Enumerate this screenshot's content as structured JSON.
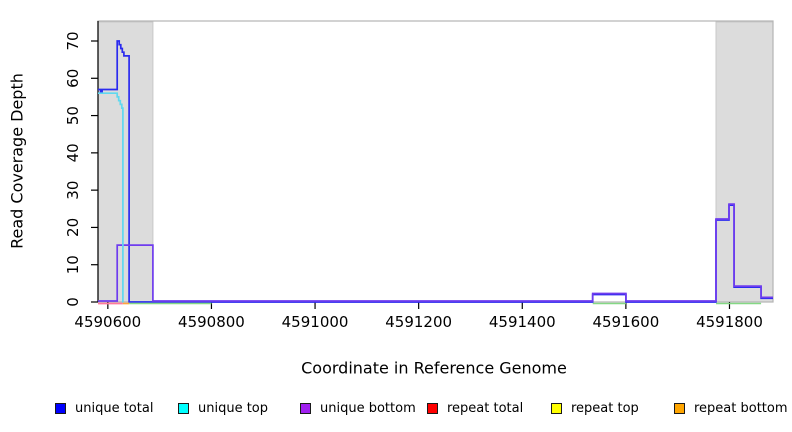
{
  "chart_data": {
    "type": "line",
    "subtype": "step-coverage",
    "title": "",
    "xlabel": "Coordinate in Reference Genome",
    "ylabel": "Read Coverage Depth",
    "xlim": [
      4590581,
      4591884
    ],
    "ylim": [
      0,
      70
    ],
    "grid": "off",
    "legend_position": "bottom",
    "x_ticks": [
      "4590600",
      "4590800",
      "4591000",
      "4591200",
      "4591400",
      "4591600",
      "4591800"
    ],
    "x_tick_values": [
      4590600,
      4590800,
      4591000,
      4591200,
      4591400,
      4591600,
      4591800
    ],
    "y_ticks": [
      "0",
      "10",
      "20",
      "30",
      "40",
      "50",
      "60",
      "70"
    ],
    "y_tick_values": [
      0,
      10,
      20,
      30,
      40,
      50,
      60,
      70
    ],
    "shaded_regions": [
      {
        "x1": 4590581,
        "x2": 4590687
      },
      {
        "x1": 4591774,
        "x2": 4591884
      }
    ],
    "shade_fill": "#dcdcdc",
    "shade_stroke": "#c8c8c8",
    "frame_color": "#b4b4b4",
    "axis_color": "#000000",
    "series": [
      {
        "name": "unique total",
        "color": "#2b2bef",
        "dy": 0,
        "points": [
          [
            4590581,
            57
          ],
          [
            4590586,
            56
          ],
          [
            4590589,
            57
          ],
          [
            4590618,
            70
          ],
          [
            4590622,
            69
          ],
          [
            4590625,
            68
          ],
          [
            4590628,
            67
          ],
          [
            4590631,
            66
          ],
          [
            4590641,
            0
          ],
          [
            4591536,
            2
          ],
          [
            4591600,
            0
          ],
          [
            4591774,
            22
          ],
          [
            4591799,
            26
          ],
          [
            4591809,
            4
          ],
          [
            4591861,
            1
          ],
          [
            4591884,
            1
          ]
        ]
      },
      {
        "name": "unique bottom",
        "color": "#6f3cee",
        "dy": -1,
        "points": [
          [
            4590581,
            0
          ],
          [
            4590618,
            15
          ],
          [
            4590687,
            0
          ],
          [
            4591536,
            2
          ],
          [
            4591600,
            0
          ],
          [
            4591774,
            22
          ],
          [
            4591799,
            26
          ],
          [
            4591809,
            4
          ],
          [
            4591861,
            1
          ],
          [
            4591884,
            1
          ]
        ]
      },
      {
        "name": "unique top",
        "color": "#5fd8ef",
        "dy": 0,
        "points": [
          [
            4590581,
            56
          ],
          [
            4590618,
            55
          ],
          [
            4590621,
            54
          ],
          [
            4590624,
            53
          ],
          [
            4590627,
            52
          ],
          [
            4590629,
            0
          ],
          [
            4590630,
            0
          ]
        ]
      },
      {
        "name": "repeat total",
        "color": "#ff7a9b",
        "dy": 1.5,
        "points": [
          [
            4590581,
            0
          ],
          [
            4590629,
            0
          ]
        ]
      },
      {
        "name": "repeat bottom",
        "color": "#ffa53e",
        "dy": 1.5,
        "points": [
          [
            4590629,
            0
          ],
          [
            4590641,
            0
          ]
        ]
      }
    ],
    "overlap_segments": {
      "note": "light-green baseline overlap of top-strand traces at depth 0",
      "color": "#84d884",
      "value": 0,
      "dy": 1.5,
      "ranges": [
        [
          4590641,
          4590800
        ],
        [
          4591536,
          4591600
        ],
        [
          4591774,
          4591861
        ]
      ]
    }
  },
  "legend": {
    "items": [
      {
        "label": "unique total",
        "color": "#0000ff"
      },
      {
        "label": "unique top",
        "color": "#00ffff"
      },
      {
        "label": "unique bottom",
        "color": "#a020f0"
      },
      {
        "label": "repeat total",
        "color": "#ff0000"
      },
      {
        "label": "repeat top",
        "color": "#ffff00"
      },
      {
        "label": "repeat bottom",
        "color": "#ffa500"
      }
    ]
  }
}
